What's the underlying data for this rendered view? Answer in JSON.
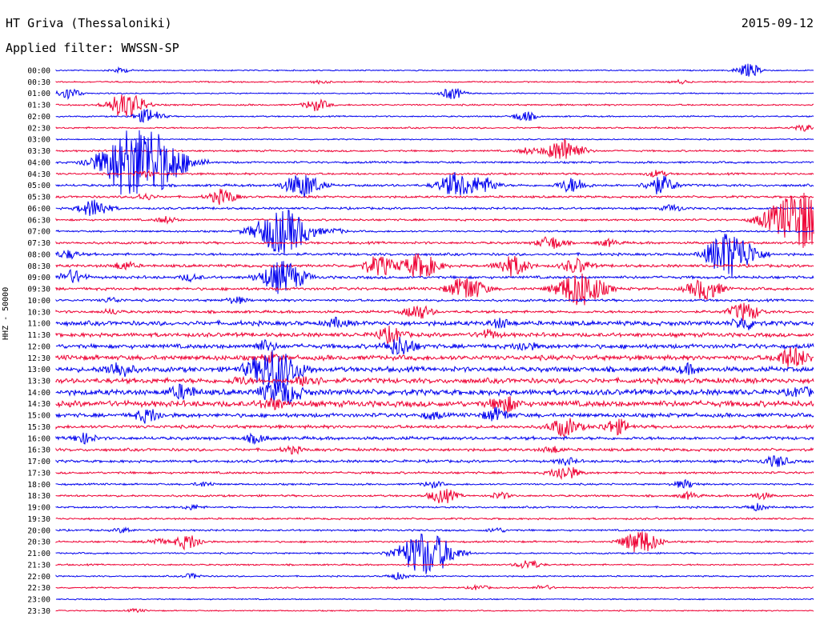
{
  "header": {
    "station": "HT Griva (Thessaloniki)",
    "date": "2015-09-12",
    "filter": "Applied filter: WWSSN-SP"
  },
  "chart_data": {
    "type": "line",
    "ylabel": "HHZ - 50000",
    "ticks": [
      "00:00",
      "00:30",
      "01:00",
      "01:30",
      "02:00",
      "02:30",
      "03:00",
      "03:30",
      "04:00",
      "04:30",
      "05:00",
      "05:30",
      "06:00",
      "06:30",
      "07:00",
      "07:30",
      "08:00",
      "08:30",
      "09:00",
      "09:30",
      "10:00",
      "10:30",
      "11:00",
      "11:30",
      "12:00",
      "12:30",
      "13:00",
      "13:30",
      "14:00",
      "14:30",
      "15:00",
      "15:30",
      "16:00",
      "16:30",
      "17:00",
      "17:30",
      "18:00",
      "18:30",
      "19:00",
      "19:30",
      "20:00",
      "20:30",
      "21:00",
      "21:30",
      "22:00",
      "22:30",
      "23:00",
      "23:30"
    ],
    "colors": [
      "#0000ee",
      "#ee0033"
    ],
    "noise": [
      0.6,
      0.7,
      0.6,
      0.8,
      0.7,
      0.8,
      0.6,
      0.9,
      1.0,
      1.0,
      1.2,
      1.1,
      1.1,
      1.0,
      0.9,
      1.2,
      1.3,
      1.4,
      1.4,
      1.4,
      1.2,
      1.3,
      2.2,
      2.0,
      2.2,
      2.4,
      2.5,
      2.5,
      2.8,
      2.9,
      2.0,
      1.6,
      1.6,
      1.4,
      1.3,
      1.1,
      0.9,
      1.0,
      0.9,
      0.9,
      0.9,
      0.9,
      0.8,
      0.8,
      0.7,
      0.7,
      0.6,
      0.6
    ],
    "bursts": [
      [
        [
          150,
          3
        ],
        [
          935,
          8
        ]
      ],
      [
        [
          400,
          2
        ],
        [
          850,
          2
        ]
      ],
      [
        [
          85,
          7
        ],
        [
          565,
          7
        ]
      ],
      [
        [
          158,
          16
        ],
        [
          395,
          7
        ]
      ],
      [
        [
          185,
          9
        ],
        [
          655,
          6
        ]
      ],
      [
        [
          1005,
          4
        ]
      ],
      [],
      [
        [
          705,
          15
        ],
        [
          660,
          4
        ]
      ],
      [
        [
          178,
          45
        ],
        [
          150,
          7
        ]
      ],
      [
        [
          180,
          4
        ],
        [
          820,
          4
        ]
      ],
      [
        [
          378,
          15
        ],
        [
          570,
          15
        ],
        [
          715,
          9
        ],
        [
          825,
          11
        ],
        [
          605,
          9
        ]
      ],
      [
        [
          278,
          9
        ],
        [
          180,
          4
        ]
      ],
      [
        [
          118,
          11
        ],
        [
          840,
          4
        ]
      ],
      [
        [
          1003,
          38
        ],
        [
          208,
          4
        ]
      ],
      [
        [
          353,
          28
        ],
        [
          420,
          3
        ]
      ],
      [
        [
          688,
          8
        ],
        [
          760,
          4
        ]
      ],
      [
        [
          918,
          22
        ],
        [
          900,
          12
        ],
        [
          85,
          5
        ]
      ],
      [
        [
          473,
          12
        ],
        [
          525,
          15
        ],
        [
          640,
          12
        ],
        [
          720,
          9
        ],
        [
          155,
          5
        ]
      ],
      [
        [
          90,
          8
        ],
        [
          353,
          20
        ],
        [
          238,
          4
        ]
      ],
      [
        [
          583,
          15
        ],
        [
          725,
          22
        ],
        [
          880,
          13
        ]
      ],
      [
        [
          295,
          4
        ],
        [
          140,
          3
        ]
      ],
      [
        [
          930,
          11
        ],
        [
          522,
          9
        ],
        [
          140,
          3
        ]
      ],
      [
        [
          420,
          5
        ],
        [
          625,
          5
        ],
        [
          930,
          7
        ]
      ],
      [
        [
          487,
          9
        ],
        [
          610,
          5
        ]
      ],
      [
        [
          500,
          11
        ],
        [
          330,
          6
        ],
        [
          655,
          5
        ]
      ],
      [
        [
          990,
          12
        ],
        [
          340,
          4
        ]
      ],
      [
        [
          148,
          9
        ],
        [
          343,
          25
        ],
        [
          860,
          5
        ]
      ],
      [
        [
          385,
          7
        ],
        [
          300,
          4
        ]
      ],
      [
        [
          228,
          8
        ],
        [
          345,
          12
        ],
        [
          365,
          7
        ],
        [
          1000,
          5
        ]
      ],
      [
        [
          630,
          9
        ],
        [
          340,
          6
        ]
      ],
      [
        [
          185,
          8
        ],
        [
          620,
          8
        ],
        [
          540,
          4
        ]
      ],
      [
        [
          705,
          11
        ],
        [
          770,
          9
        ]
      ],
      [
        [
          105,
          6
        ],
        [
          320,
          5
        ]
      ],
      [
        [
          365,
          4
        ],
        [
          690,
          4
        ]
      ],
      [
        [
          708,
          4
        ],
        [
          970,
          7
        ]
      ],
      [
        [
          705,
          9
        ]
      ],
      [
        [
          255,
          3
        ],
        [
          540,
          4
        ],
        [
          855,
          5
        ]
      ],
      [
        [
          553,
          9
        ],
        [
          625,
          4
        ],
        [
          860,
          4
        ],
        [
          950,
          4
        ]
      ],
      [
        [
          240,
          3
        ],
        [
          945,
          4
        ]
      ],
      [],
      [
        [
          155,
          3
        ],
        [
          620,
          3
        ]
      ],
      [
        [
          235,
          9
        ],
        [
          800,
          15
        ],
        [
          195,
          4
        ]
      ],
      [
        [
          532,
          28
        ]
      ],
      [
        [
          660,
          6
        ]
      ],
      [
        [
          497,
          4
        ],
        [
          240,
          3
        ]
      ],
      [
        [
          598,
          3
        ],
        [
          678,
          3
        ]
      ],
      [],
      [
        [
          170,
          2
        ]
      ]
    ]
  }
}
